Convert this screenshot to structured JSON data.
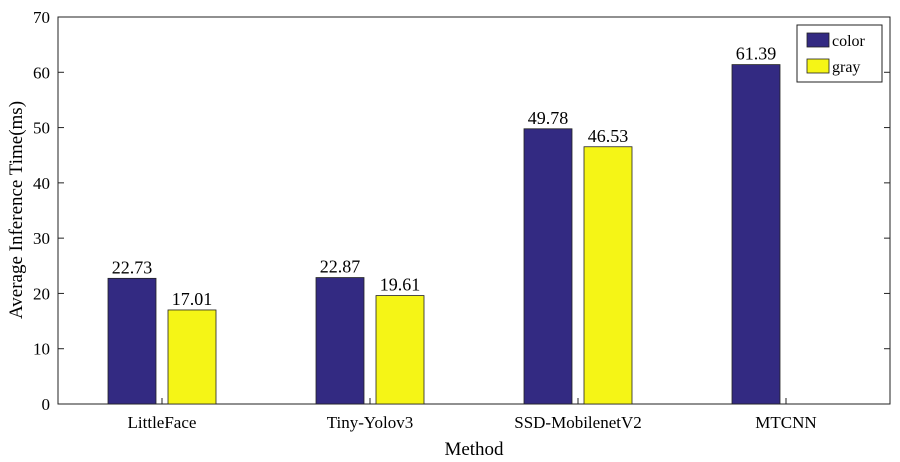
{
  "chart_data": {
    "type": "bar",
    "categories": [
      "LittleFace",
      "Tiny-Yolov3",
      "SSD-MobilenetV2",
      "MTCNN"
    ],
    "series": [
      {
        "name": "color",
        "color": "#332a82",
        "values": [
          22.73,
          22.87,
          49.78,
          61.39
        ]
      },
      {
        "name": "gray",
        "color": "#f5f516",
        "values": [
          17.01,
          19.61,
          46.53,
          null
        ]
      }
    ],
    "data_labels": [
      [
        "22.73",
        "22.87",
        "49.78",
        "61.39"
      ],
      [
        "17.01",
        "19.61",
        "46.53",
        ""
      ]
    ],
    "xlabel": "Method",
    "ylabel": "Average Inference Time(ms)",
    "ylim": [
      0,
      70
    ],
    "yticks": [
      "0",
      "10",
      "20",
      "30",
      "40",
      "50",
      "60",
      "70"
    ],
    "grid": false,
    "legend_position": "top-right"
  }
}
